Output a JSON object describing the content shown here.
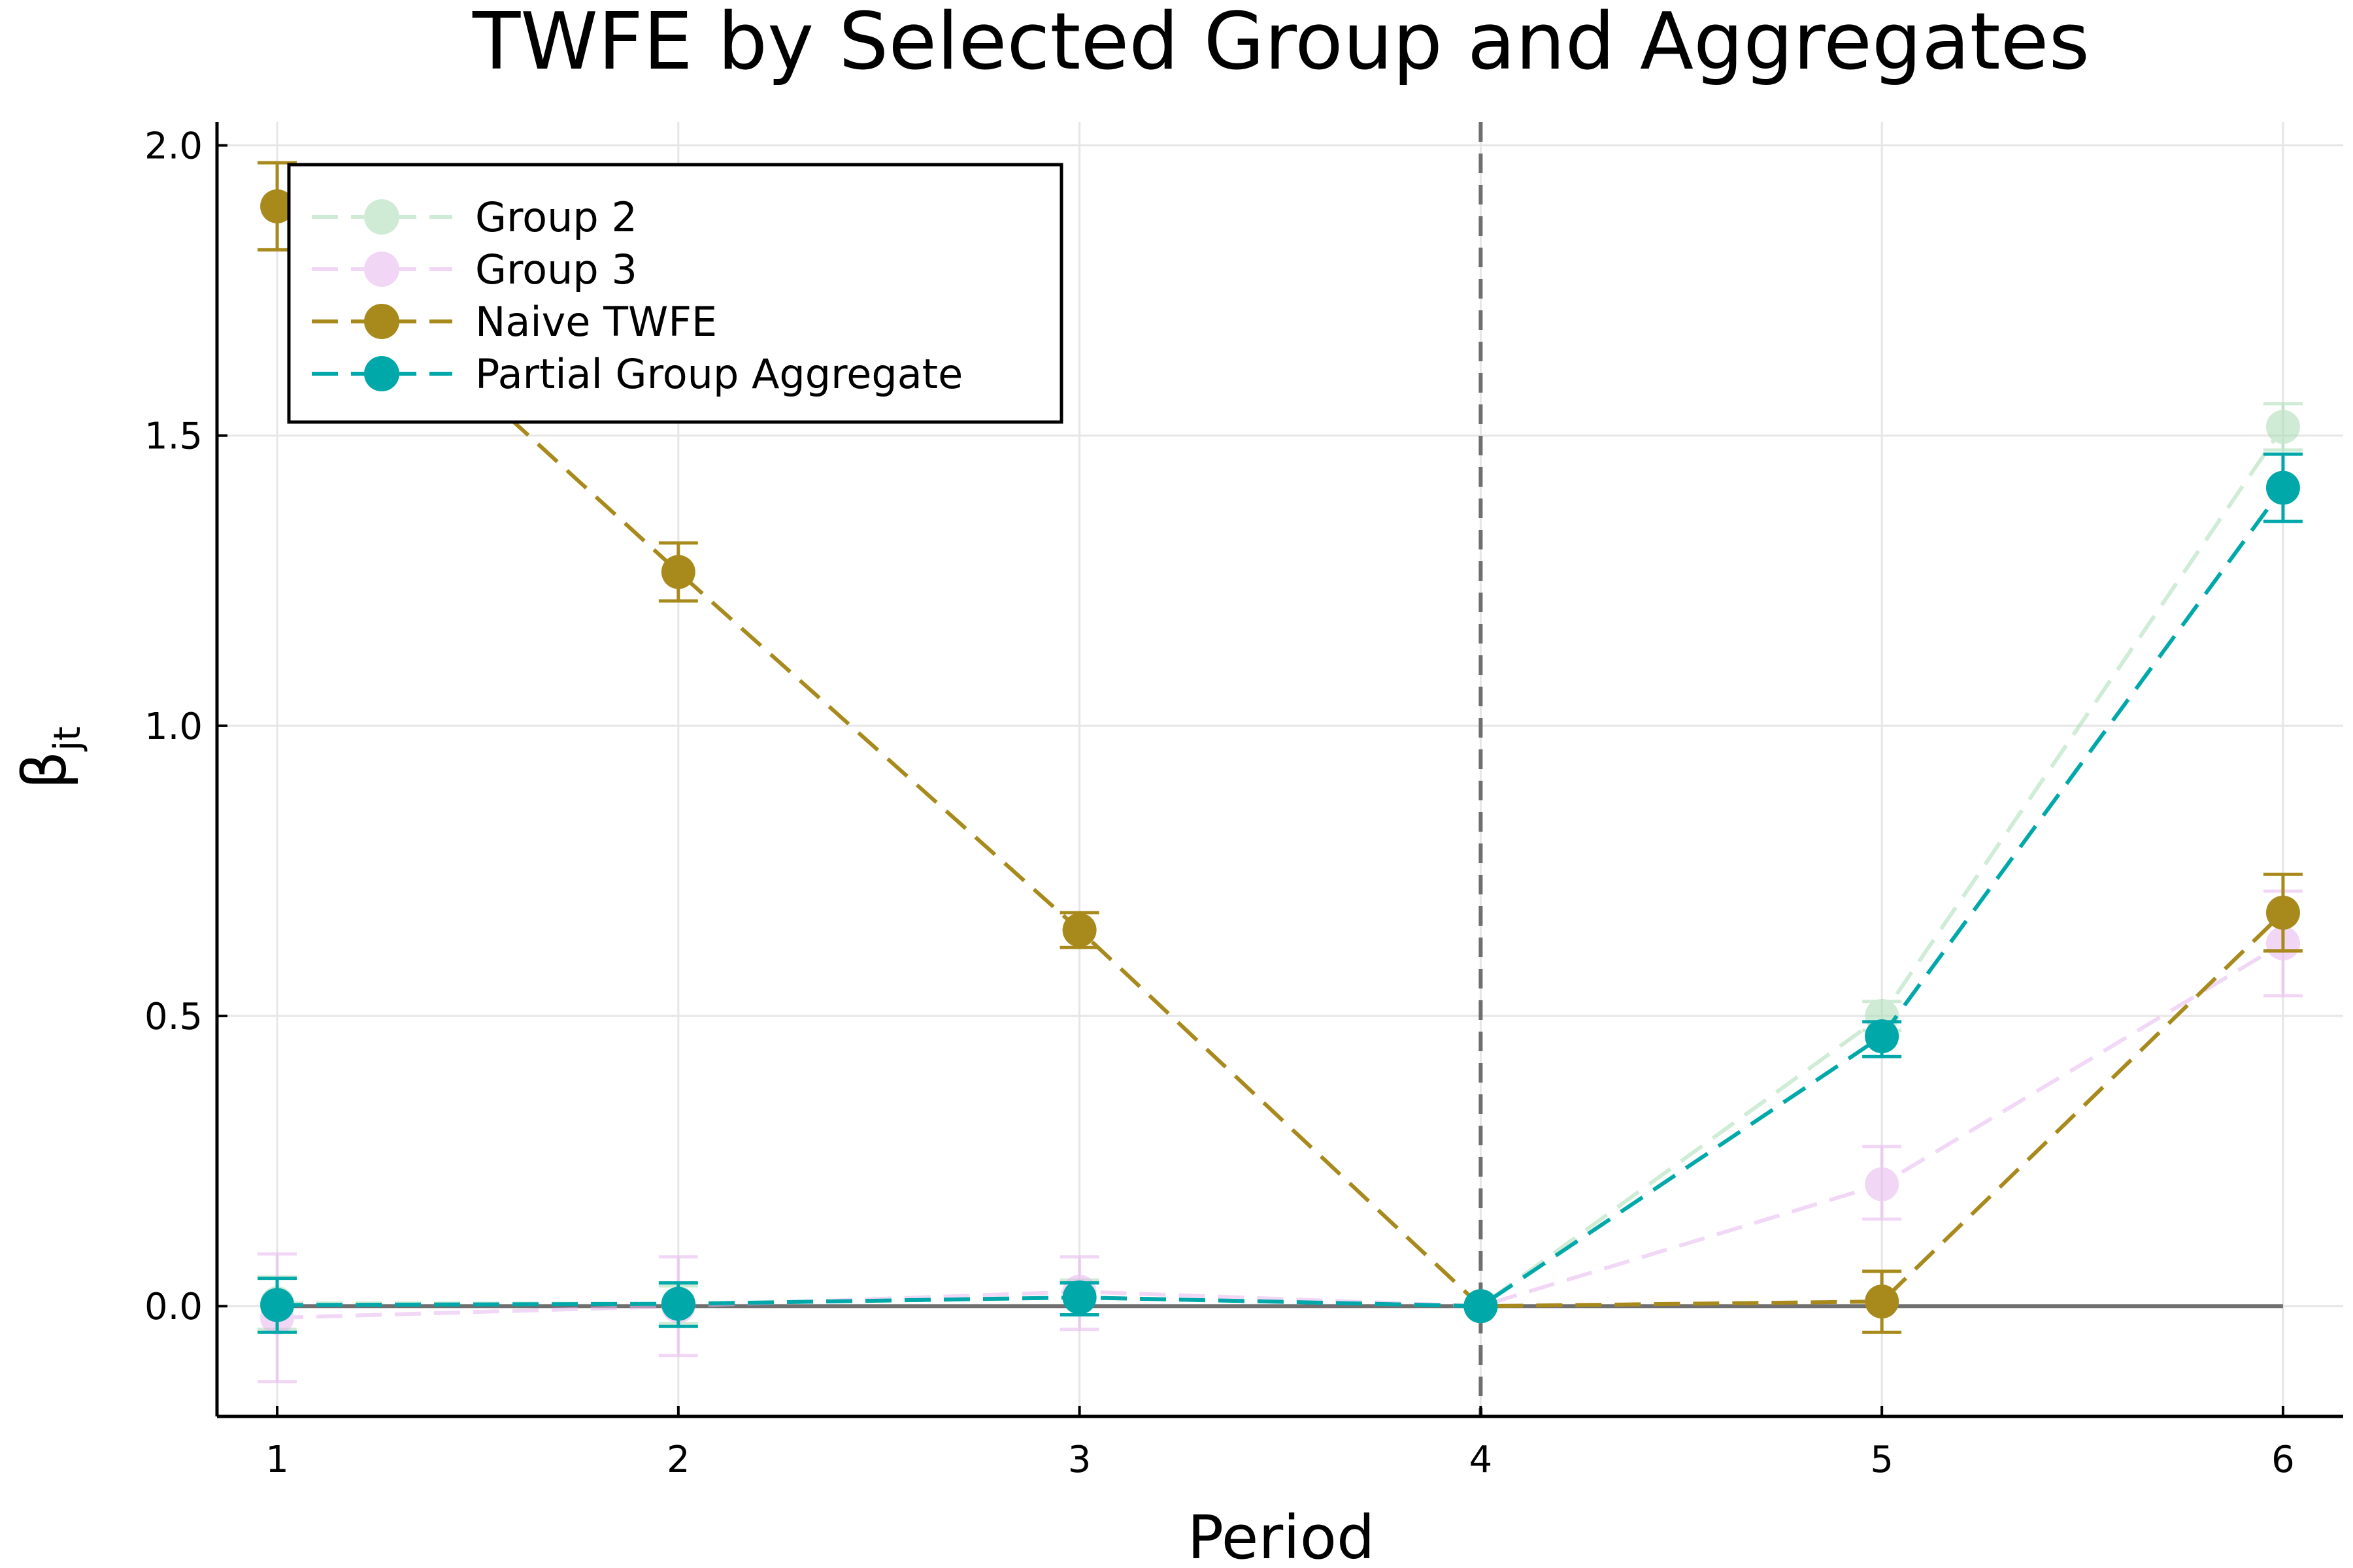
{
  "chart_data": {
    "type": "line",
    "title": "TWFE by Selected Group and Aggregates",
    "xlabel": "Period",
    "ylabel": "β",
    "ylabel_sub": "jt",
    "x": [
      1,
      2,
      3,
      4,
      5,
      6
    ],
    "xticks": [
      "1",
      "2",
      "3",
      "4",
      "5",
      "6"
    ],
    "yticks": [
      "0.0",
      "0.5",
      "1.0",
      "1.5",
      "2.0"
    ],
    "xlim": [
      0.85,
      6.15
    ],
    "ylim": [
      -0.19,
      2.04
    ],
    "grid": true,
    "legend_position": "top-left",
    "reference_vline_x": 4,
    "reference_hline_y": 0,
    "series": [
      {
        "name": "Group 2",
        "color": "#a8dcb4",
        "opacity": 0.55,
        "values": [
          0.005,
          0.004,
          0.015,
          0.0,
          0.5,
          1.515
        ],
        "err_lo": [
          -0.04,
          -0.03,
          -0.015,
          0.0,
          0.475,
          1.475
        ],
        "err_hi": [
          0.05,
          0.035,
          0.045,
          0.0,
          0.525,
          1.555
        ]
      },
      {
        "name": "Group 3",
        "color": "#e6b8ee",
        "opacity": 0.55,
        "values": [
          -0.02,
          0.0,
          0.025,
          0.0,
          0.21,
          0.625
        ],
        "err_lo": [
          -0.13,
          -0.085,
          -0.04,
          0.0,
          0.15,
          0.535
        ],
        "err_hi": [
          0.09,
          0.085,
          0.085,
          0.0,
          0.275,
          0.715
        ]
      },
      {
        "name": "Naive TWFE",
        "color": "#a88a1c",
        "opacity": 1,
        "values": [
          1.895,
          1.265,
          0.648,
          0.0,
          0.008,
          0.678
        ],
        "err_lo": [
          1.82,
          1.215,
          0.618,
          0.0,
          -0.045,
          0.612
        ],
        "err_hi": [
          1.97,
          1.315,
          0.678,
          0.0,
          0.06,
          0.744
        ]
      },
      {
        "name": "Partial Group Aggregate",
        "color": "#00a8aa",
        "opacity": 1,
        "values": [
          0.002,
          0.004,
          0.015,
          0.0,
          0.465,
          1.41
        ],
        "err_lo": [
          -0.045,
          -0.035,
          -0.015,
          0.0,
          0.43,
          1.352
        ],
        "err_hi": [
          0.048,
          0.04,
          0.04,
          0.0,
          0.49,
          1.468
        ]
      }
    ]
  }
}
